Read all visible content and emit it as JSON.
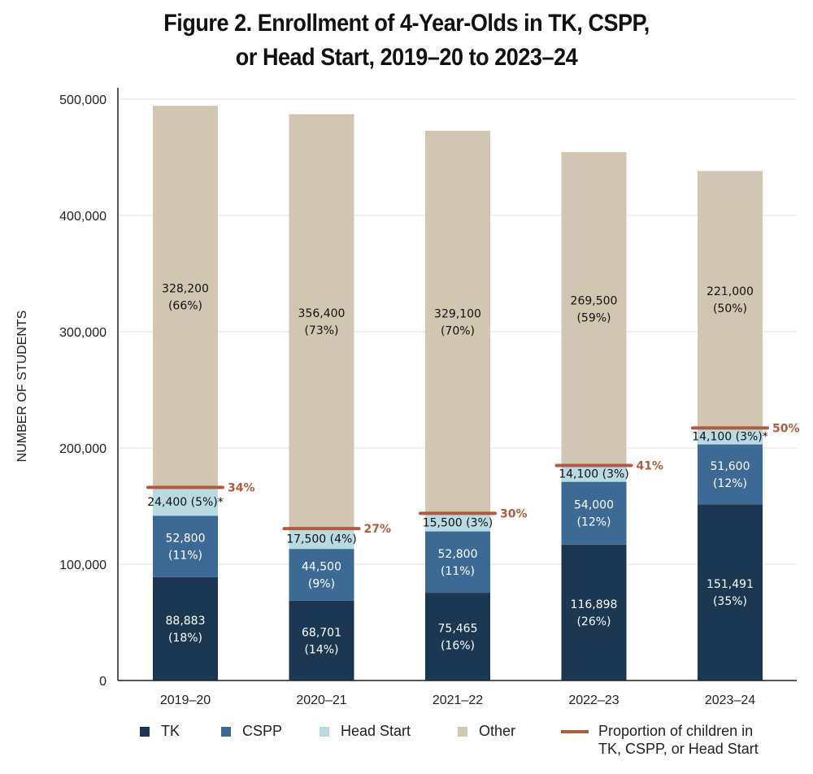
{
  "chart_data": {
    "type": "bar",
    "stacked": true,
    "title_lines": [
      "Figure 2. Enrollment of 4-Year-Olds in TK, CSPP,",
      "or Head Start, 2019–20 to 2023–24"
    ],
    "ylabel": "NUMBER OF STUDENTS",
    "ylim": [
      0,
      500000
    ],
    "yticks": [
      0,
      100000,
      200000,
      300000,
      400000,
      500000
    ],
    "ytick_labels": [
      "0",
      "100,000",
      "200,000",
      "300,000",
      "400,000",
      "500,000"
    ],
    "categories": [
      "2019–20",
      "2020–21",
      "2021–22",
      "2022–23",
      "2023–24"
    ],
    "series": [
      {
        "name": "TK",
        "color": "#1c3752",
        "label_color": "#ffffff",
        "values": [
          88883,
          68701,
          75465,
          116898,
          151491
        ],
        "labels": [
          [
            "88,883",
            "(18%)"
          ],
          [
            "68,701",
            "(14%)"
          ],
          [
            "75,465",
            "(16%)"
          ],
          [
            "116,898",
            "(26%)"
          ],
          [
            "151,491",
            "(35%)"
          ]
        ]
      },
      {
        "name": "CSPP",
        "color": "#3d6a94",
        "label_color": "#ffffff",
        "values": [
          52800,
          44500,
          52800,
          54000,
          51600
        ],
        "labels": [
          [
            "52,800",
            "(11%)"
          ],
          [
            "44,500",
            "(9%)"
          ],
          [
            "52,800",
            "(11%)"
          ],
          [
            "54,000",
            "(12%)"
          ],
          [
            "51,600",
            "(12%)"
          ]
        ]
      },
      {
        "name": "Head Start",
        "color": "#b8dbe3",
        "label_color": "#111111",
        "values": [
          24400,
          17500,
          15500,
          14100,
          14100
        ],
        "labels": [
          [
            "24,400 (5%)*"
          ],
          [
            "17,500 (4%)"
          ],
          [
            "15,500 (3%)"
          ],
          [
            "14,100 (3%)"
          ],
          [
            "14,100 (3%)*"
          ]
        ]
      },
      {
        "name": "Other",
        "color": "#d1c6b2",
        "label_color": "#111111",
        "values": [
          328200,
          356400,
          329100,
          269500,
          221000
        ],
        "labels": [
          [
            "328,200",
            "(66%)"
          ],
          [
            "356,400",
            "(73%)"
          ],
          [
            "329,100",
            "(70%)"
          ],
          [
            "269,500",
            "(59%)"
          ],
          [
            "221,000",
            "(50%)"
          ]
        ]
      }
    ],
    "proportion_line": {
      "name": "Proportion of children in TK, CSPP, or Head Start",
      "color": "#b35a3c",
      "labels": [
        "34%",
        "27%",
        "30%",
        "41%",
        "50%"
      ]
    },
    "legend_position": "bottom",
    "grid": true
  },
  "legend": {
    "tk": "TK",
    "cspp": "CSPP",
    "head_start": "Head Start",
    "other": "Other",
    "line_1": "Proportion of children in",
    "line_2": "TK, CSPP, or Head Start"
  }
}
